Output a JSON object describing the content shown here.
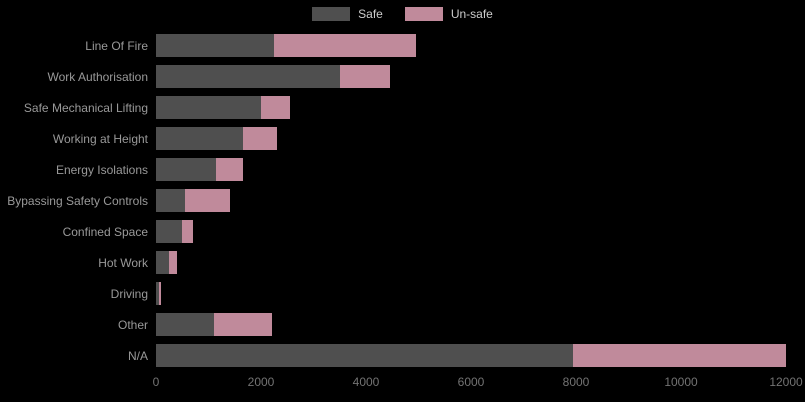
{
  "chart_data": {
    "type": "bar",
    "orientation": "horizontal",
    "stacked": true,
    "title": "",
    "xlabel": "",
    "ylabel": "",
    "categories": [
      "Line Of Fire",
      "Work Authorisation",
      "Safe Mechanical Lifting",
      "Working at Height",
      "Energy Isolations",
      "Bypassing Safety Controls",
      "Confined Space",
      "Hot Work",
      "Driving",
      "Other",
      "N/A"
    ],
    "series": [
      {
        "name": "Safe",
        "color": "#4f4f4f",
        "values": [
          2250,
          3500,
          2000,
          1650,
          1150,
          550,
          500,
          250,
          50,
          1100,
          7950
        ]
      },
      {
        "name": "Un-safe",
        "color": "#c08a9b",
        "values": [
          2700,
          950,
          550,
          650,
          500,
          850,
          200,
          150,
          50,
          1100,
          4050
        ]
      }
    ],
    "xlim": [
      0,
      12000
    ],
    "x_ticks": [
      "0",
      "2000",
      "4000",
      "6000",
      "8000",
      "10000",
      "12000"
    ],
    "legend_position": "top",
    "grid": false,
    "background_color": "#000000",
    "category_label_color": "#999999",
    "tick_label_color": "#737373",
    "legend_text_color": "#cccccc"
  }
}
